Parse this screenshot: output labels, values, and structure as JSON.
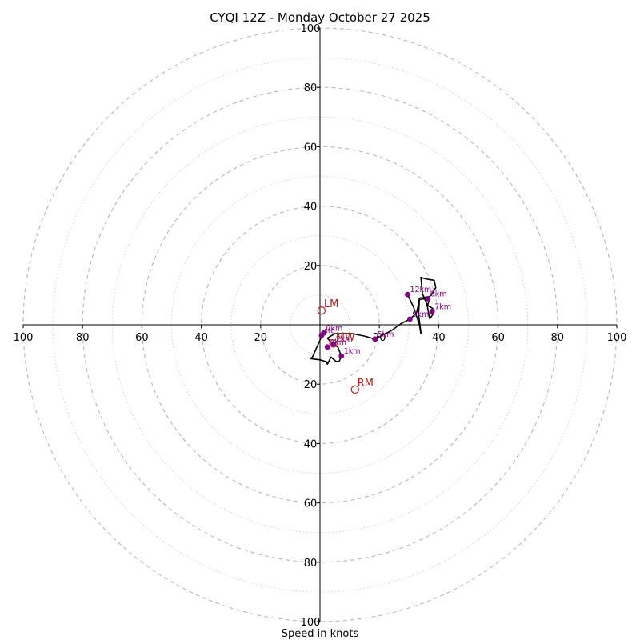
{
  "chart_data": {
    "type": "scatter",
    "title": "CYQI 12Z - Monday October 27 2025",
    "xlabel": "Speed in knots",
    "ylabel": "",
    "xlim": [
      -100,
      100
    ],
    "ylim": [
      -100,
      100
    ],
    "ticks": [
      100,
      80,
      60,
      40,
      20
    ],
    "tick_labels": {
      "x": [
        "100",
        "80",
        "60",
        "40",
        "20",
        "20",
        "40",
        "60",
        "80",
        "100"
      ],
      "y": [
        "100",
        "80",
        "60",
        "40",
        "20",
        "20",
        "40",
        "60",
        "80",
        "100"
      ]
    },
    "rings": {
      "major": [
        20,
        40,
        60,
        80,
        100
      ],
      "minor": [
        10,
        30,
        50,
        70,
        90
      ],
      "major_style": "dashed",
      "minor_style": "dotted"
    },
    "hodograph": {
      "color": "#000000",
      "points": [
        [
          0.5,
          -3.6
        ],
        [
          0.5,
          -4.0
        ],
        [
          -2.5,
          -10.8
        ],
        [
          -3.2,
          -11.4
        ],
        [
          0.0,
          -11.8
        ],
        [
          2.3,
          -12.5
        ],
        [
          2.5,
          -13.3
        ],
        [
          3.7,
          -10.9
        ],
        [
          5.5,
          -12.4
        ],
        [
          6.5,
          -12.3
        ],
        [
          7.2,
          -10.5
        ],
        [
          6.0,
          -7.5
        ],
        [
          4.5,
          -6.5
        ],
        [
          3.8,
          -6.0
        ],
        [
          2.5,
          -4.5
        ],
        [
          5.0,
          -3.0
        ],
        [
          11.0,
          -3.0
        ],
        [
          15.0,
          -3.8
        ],
        [
          18.5,
          -4.8
        ],
        [
          24.0,
          -2.0
        ],
        [
          27.5,
          0.5
        ],
        [
          30.3,
          1.9
        ],
        [
          32.5,
          4.0
        ],
        [
          33.0,
          6.0
        ],
        [
          33.5,
          9.0
        ],
        [
          37.0,
          9.5
        ],
        [
          36.3,
          6.5
        ],
        [
          38.0,
          5.5
        ],
        [
          37.8,
          4.5
        ],
        [
          38.0,
          3.5
        ],
        [
          37.0,
          2.0
        ],
        [
          36.0,
          7.0
        ],
        [
          34.5,
          10.5
        ],
        [
          34.0,
          16.0
        ],
        [
          35.5,
          15.5
        ],
        [
          38.5,
          15.0
        ],
        [
          39.0,
          12.5
        ],
        [
          37.5,
          10.0
        ],
        [
          36.2,
          9.0
        ],
        [
          33.5,
          8.5
        ],
        [
          33.2,
          3.5
        ],
        [
          34.0,
          -2.5
        ],
        [
          34.0,
          -3.0
        ],
        [
          33.5,
          0.0
        ],
        [
          31.5,
          6.0
        ],
        [
          29.5,
          10.2
        ]
      ]
    },
    "height_markers": {
      "color": "#800080",
      "points": [
        {
          "label": "sfc",
          "u": 0.5,
          "v": -3.6
        },
        {
          "label": "0km",
          "u": 1.2,
          "v": -2.8
        },
        {
          "label": "1km",
          "u": 7.2,
          "v": -10.5
        },
        {
          "label": "2km",
          "u": 4.5,
          "v": -6.5
        },
        {
          "label": "3km",
          "u": 2.5,
          "v": -7.5
        },
        {
          "label": "5km",
          "u": 18.5,
          "v": -4.8
        },
        {
          "label": "9km",
          "u": 30.3,
          "v": 1.9
        },
        {
          "label": "6km",
          "u": 36.3,
          "v": 8.8
        },
        {
          "label": "7km",
          "u": 37.8,
          "v": 4.5
        },
        {
          "label": "12km",
          "u": 29.5,
          "v": 10.2
        }
      ]
    },
    "storm_motion": {
      "color": "#b22222",
      "points": [
        {
          "label": "LM",
          "u": 0.5,
          "v": 4.8
        },
        {
          "label": "MW",
          "u": 4.5,
          "v": -6.3
        },
        {
          "label": "RM",
          "u": 11.8,
          "v": -21.8
        }
      ]
    }
  }
}
